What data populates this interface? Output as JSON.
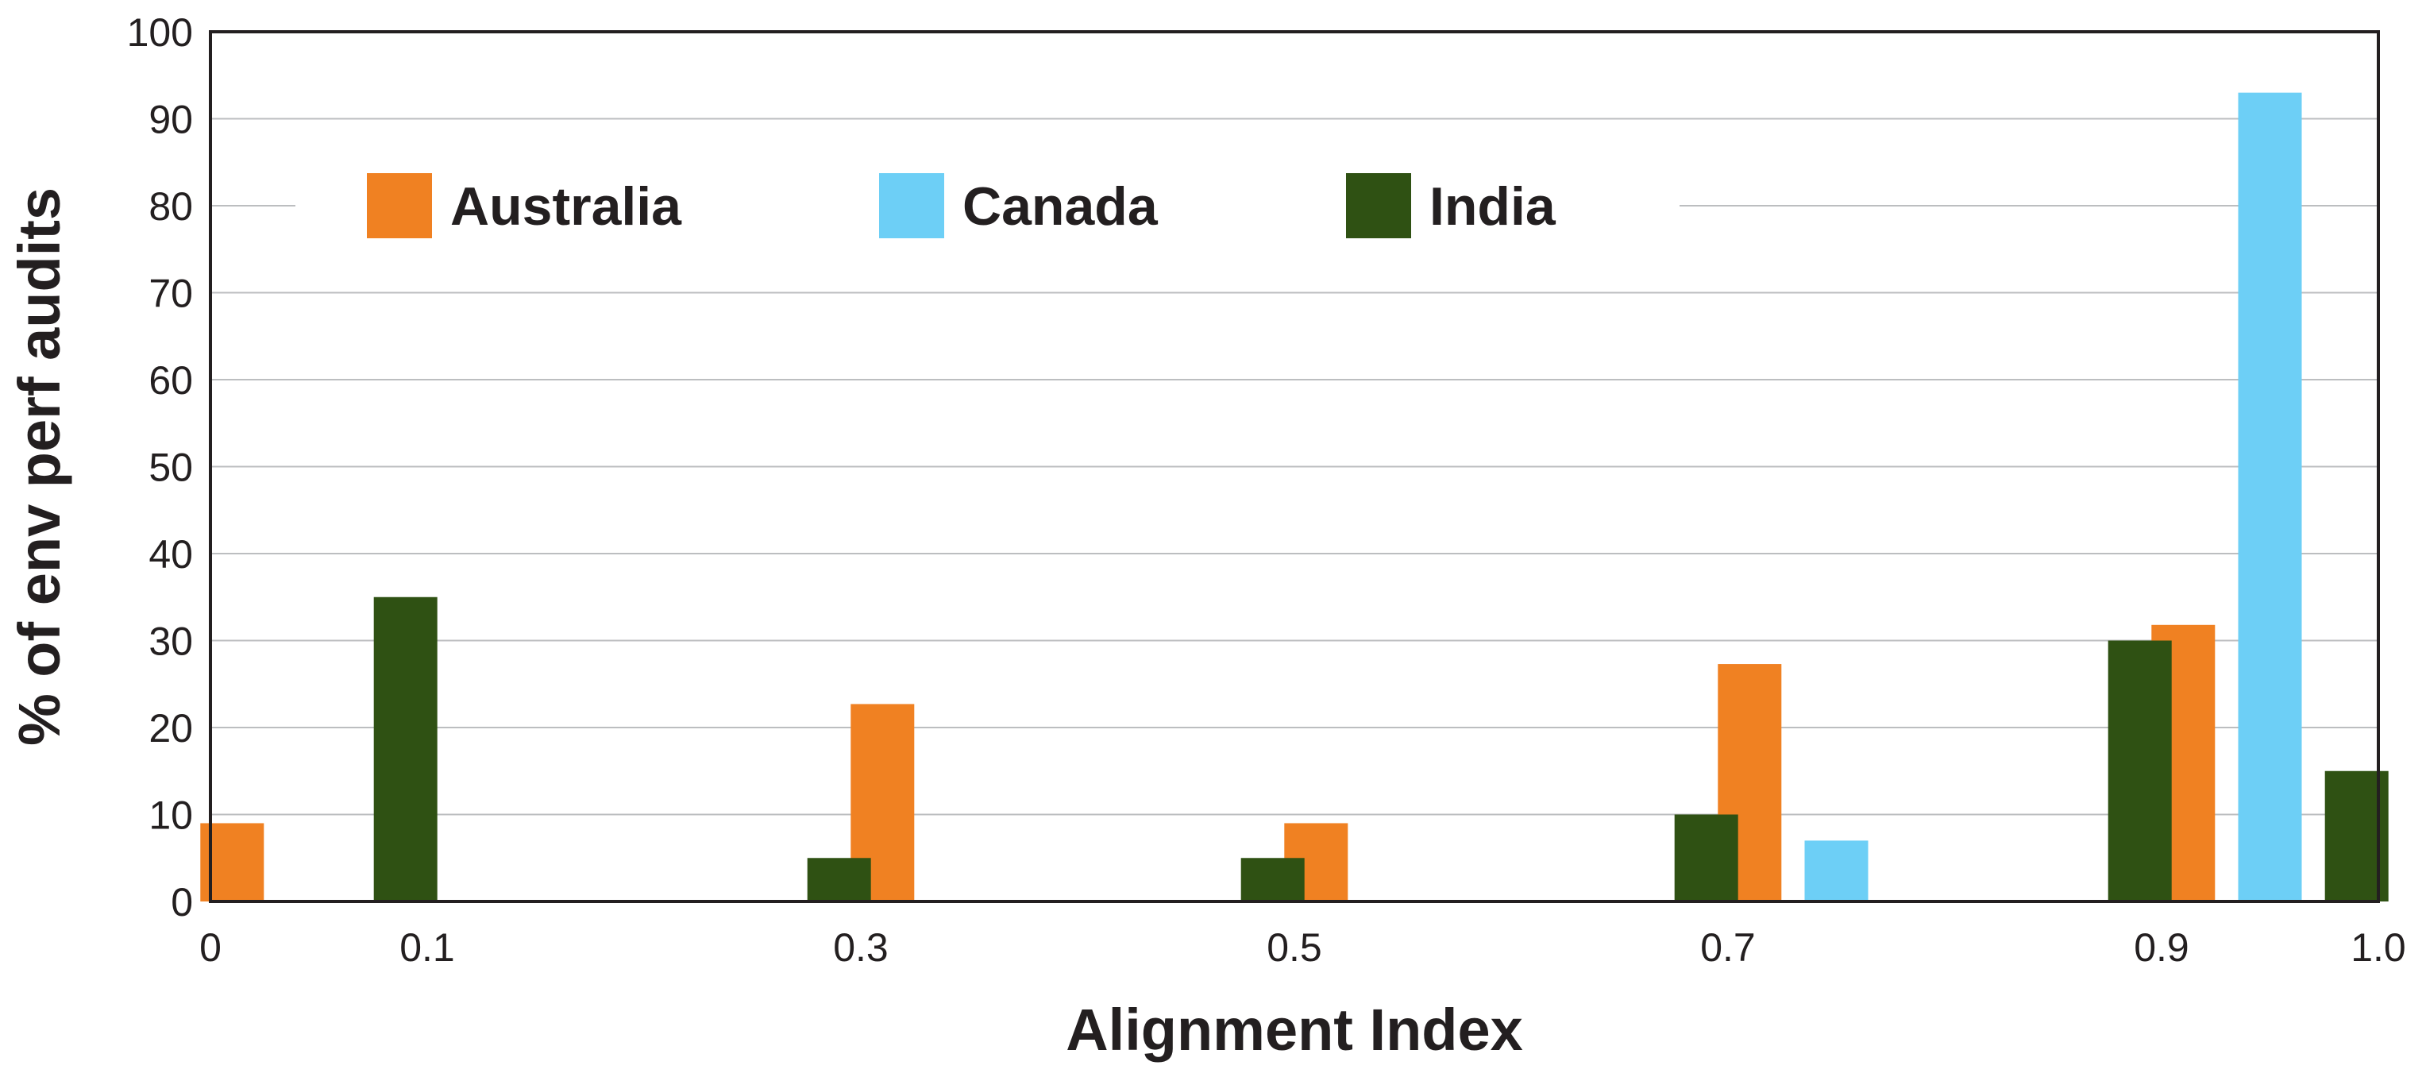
{
  "chart_data": {
    "type": "bar",
    "xlabel": "Alignment Index",
    "ylabel": "% of env perf audits",
    "ylim": [
      0,
      100
    ],
    "xlim": [
      0,
      1.0
    ],
    "y_ticks": [
      "0",
      "10",
      "20",
      "30",
      "40",
      "50",
      "60",
      "70",
      "80",
      "90",
      "100"
    ],
    "x_ticks": [
      {
        "value": 0,
        "label": "0"
      },
      {
        "value": 0.1,
        "label": "0.1"
      },
      {
        "value": 0.3,
        "label": "0.3"
      },
      {
        "value": 0.5,
        "label": "0.5"
      },
      {
        "value": 0.7,
        "label": "0.7"
      },
      {
        "value": 0.9,
        "label": "0.9"
      },
      {
        "value": 1.0,
        "label": "1.0"
      }
    ],
    "grid": "horizontal",
    "legend_position": "top",
    "series": [
      {
        "name": "Australia",
        "color": "#f08122",
        "points": [
          {
            "x": 0.05,
            "y": 9
          },
          {
            "x": 0.15,
            "y": 0
          },
          {
            "x": 0.25,
            "y": 0
          },
          {
            "x": 0.35,
            "y": 22.7
          },
          {
            "x": 0.45,
            "y": 0
          },
          {
            "x": 0.55,
            "y": 9
          },
          {
            "x": 0.65,
            "y": 0
          },
          {
            "x": 0.75,
            "y": 27.3
          },
          {
            "x": 0.85,
            "y": 0
          },
          {
            "x": 0.95,
            "y": 31.8
          }
        ]
      },
      {
        "name": "Canada",
        "color": "#6dcff6",
        "points": [
          {
            "x": 0.05,
            "y": 0
          },
          {
            "x": 0.15,
            "y": 0
          },
          {
            "x": 0.25,
            "y": 0
          },
          {
            "x": 0.35,
            "y": 0
          },
          {
            "x": 0.45,
            "y": 0
          },
          {
            "x": 0.55,
            "y": 0
          },
          {
            "x": 0.65,
            "y": 0
          },
          {
            "x": 0.75,
            "y": 7
          },
          {
            "x": 0.85,
            "y": 0
          },
          {
            "x": 0.95,
            "y": 93
          }
        ]
      },
      {
        "name": "India",
        "color": "#2f5113",
        "points": [
          {
            "x": 0.05,
            "y": 35
          },
          {
            "x": 0.15,
            "y": 0
          },
          {
            "x": 0.25,
            "y": 5
          },
          {
            "x": 0.35,
            "y": 0
          },
          {
            "x": 0.45,
            "y": 5
          },
          {
            "x": 0.55,
            "y": 0
          },
          {
            "x": 0.65,
            "y": 10
          },
          {
            "x": 0.75,
            "y": 0
          },
          {
            "x": 0.85,
            "y": 30
          },
          {
            "x": 0.95,
            "y": 15
          }
        ]
      }
    ]
  },
  "colors": {
    "axis": "#231f20",
    "grid": "#bcbec0",
    "background": "#ffffff"
  }
}
